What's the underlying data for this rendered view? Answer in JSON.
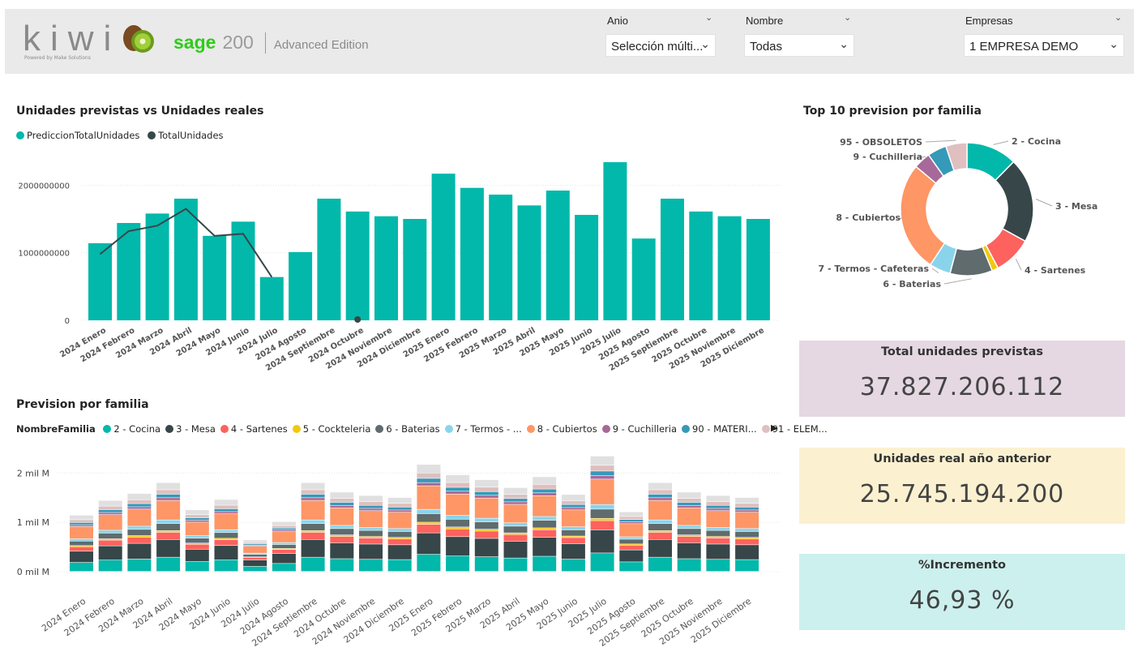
{
  "header": {
    "brand": {
      "kiwi": "kiwi",
      "kiwi_sub": "Powered by Make Solutions",
      "sage": "sage",
      "sage_num": "200",
      "edition": "Advanced Edition"
    },
    "slicers": [
      {
        "label": "Anio",
        "value": "Selección múlti..."
      },
      {
        "label": "Nombre",
        "value": "Todas"
      },
      {
        "label": "Empresas",
        "value": "1 EMPRESA DEMO"
      }
    ]
  },
  "colors": {
    "teal": "#01b8aa",
    "dark": "#374649",
    "red": "#fd625e",
    "yellow": "#f2c80f",
    "grey": "#5f6b6d",
    "lightblue": "#8ad4eb",
    "orange": "#fe9666",
    "purple": "#a66999",
    "teal2": "#3599b8",
    "pink": "#dfbfbf"
  },
  "months": [
    "2024 Enero",
    "2024 Febrero",
    "2024 Marzo",
    "2024 Abril",
    "2024 Mayo",
    "2024 Junio",
    "2024 Julio",
    "2024 Agosto",
    "2024 Septiembre",
    "2024 Octubre",
    "2024 Noviembre",
    "2024 Diciembre",
    "2025 Enero",
    "2025 Febrero",
    "2025 Marzo",
    "2025 Abril",
    "2025 Mayo",
    "2025 Junio",
    "2025 Julio",
    "2025 Agosto",
    "2025 Septiembre",
    "2025 Octubre",
    "2025 Noviembre",
    "2025 Diciembre"
  ],
  "chart_data": [
    {
      "type": "bar",
      "title": "Unidades previstas vs Unidades reales",
      "categories_ref": "months",
      "series": [
        {
          "name": "PrediccionTotalUnidades",
          "kind": "bar",
          "values": [
            1140000000,
            1440000000,
            1580000000,
            1800000000,
            1250000000,
            1460000000,
            640000000,
            1010000000,
            1800000000,
            1610000000,
            1540000000,
            1500000000,
            2170000000,
            1960000000,
            1860000000,
            1700000000,
            1920000000,
            1560000000,
            2340000000,
            1210000000,
            1800000000,
            1610000000,
            1540000000,
            1500000000
          ]
        },
        {
          "name": "TotalUnidades",
          "kind": "line",
          "values": [
            980000000,
            1320000000,
            1400000000,
            1650000000,
            1250000000,
            1280000000,
            640000000,
            null,
            null,
            0,
            null,
            null,
            null,
            null,
            null,
            null,
            null,
            null,
            null,
            null,
            null,
            null,
            null,
            null
          ]
        }
      ],
      "ylim": [
        0,
        2500000000
      ],
      "yticks": [
        "0",
        "1000000000",
        "2000000000"
      ],
      "grid": true,
      "legend": "top-left"
    },
    {
      "type": "pie",
      "title": "Top 10 prevision por familia",
      "donut": true,
      "slices": [
        {
          "label": "2 - Cocina",
          "value": 12,
          "color": "#01b8aa"
        },
        {
          "label": "3 - Mesa",
          "value": 20,
          "color": "#374649"
        },
        {
          "label": "4 - Sartenes",
          "value": 9,
          "color": "#fd625e"
        },
        {
          "label": "5 - Cockteleria",
          "value": 1.5,
          "color": "#f2c80f"
        },
        {
          "label": "6 - Baterias",
          "value": 10,
          "color": "#5f6b6d"
        },
        {
          "label": "7 - Termos - Cafeteras",
          "value": 5,
          "color": "#8ad4eb"
        },
        {
          "label": "8 - Cubiertos",
          "value": 26,
          "color": "#fe9666"
        },
        {
          "label": "9 - Cuchilleria",
          "value": 4,
          "color": "#a66999"
        },
        {
          "label": "",
          "value": 4.5,
          "color": "#3599b8"
        },
        {
          "label": "95 - OBSOLETOS",
          "value": 5,
          "color": "#dfbfbf"
        }
      ]
    },
    {
      "type": "bar",
      "stacked": true,
      "title": "Prevision por familia",
      "categories_ref": "months",
      "legend_title": "NombreFamilia",
      "legend": "top",
      "yticks": [
        "0 mil M",
        "1 mil M",
        "2 mil M"
      ],
      "ylim": [
        0,
        2500000000
      ],
      "series_names": [
        "2 - Cocina",
        "3 - Mesa",
        "4 - Sartenes",
        "5 - Cockteleria",
        "6 - Baterias",
        "7 - Termos - ...",
        "8 - Cubiertos",
        "9 - Cuchilleria",
        "90 - MATERI...",
        "91 - ELEM..."
      ],
      "stack_shares": [
        0.16,
        0.2,
        0.08,
        0.02,
        0.08,
        0.04,
        0.22,
        0.03,
        0.04,
        0.05,
        0.08
      ],
      "stack_colors": [
        "#01b8aa",
        "#374649",
        "#fd625e",
        "#f2c80f",
        "#5f6b6d",
        "#8ad4eb",
        "#fe9666",
        "#a66999",
        "#3599b8",
        "#dfbfbf",
        "#e0e0e0"
      ]
    }
  ],
  "cards": [
    {
      "title": "Total unidades previstas",
      "value": "37.827.206.112",
      "bg": "#e5d8e2"
    },
    {
      "title": "Unidades real año anterior",
      "value": "25.745.194.200",
      "bg": "#fbf1d0"
    },
    {
      "title": "%Incremento",
      "value": "46,93 %",
      "bg": "#ccf0ee"
    }
  ],
  "icons": {
    "slicer_dropdown": "chevron-down-icon",
    "legend_next": "triangle-right-icon"
  }
}
